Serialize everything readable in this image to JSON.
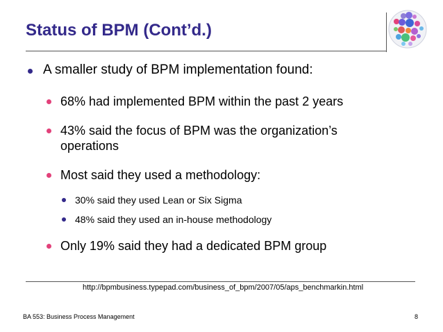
{
  "slide": {
    "title": "Status of BPM (Cont’d.)",
    "bullets": {
      "main": "A smaller study of BPM implementation found:",
      "sub1": "68% had implemented BPM within the past 2 years",
      "sub2_line1": "43% said the focus of BPM was the organization’s",
      "sub2_line2": "operations",
      "sub3": "Most said they used a methodology:",
      "subsub1": "30% said they used Lean or Six Sigma",
      "subsub2": "48% said they used an in-house methodology",
      "sub4": "Only 19% said they had a dedicated BPM group"
    },
    "source_url": "http://bpmbusiness.typepad.com/business_of_bpm/2007/05/aps_benchmarkin.html",
    "footer": {
      "course": "BA 553: Business Process Management",
      "page_number": "8"
    }
  },
  "colors": {
    "title": "#33298a",
    "bullet_primary": "#33298a",
    "bullet_secondary": "#e2417a"
  }
}
